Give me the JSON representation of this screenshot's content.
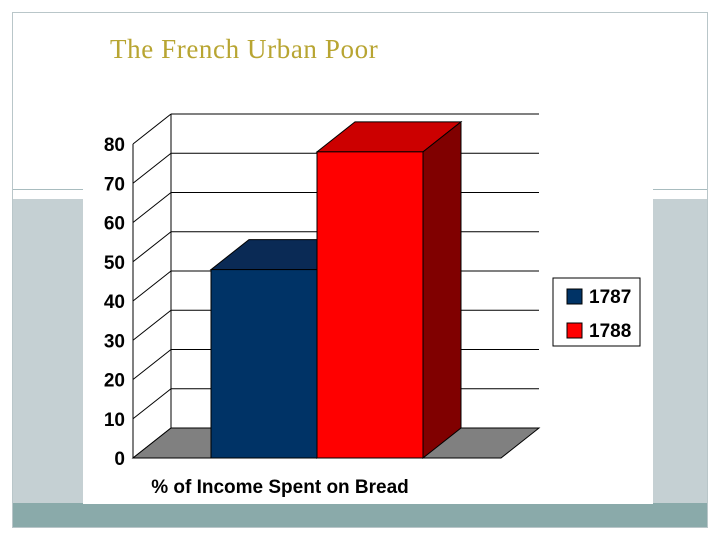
{
  "slide": {
    "title": "The French Urban Poor"
  },
  "chart_data": {
    "type": "bar",
    "title": "",
    "xlabel": "% of Income Spent on Bread",
    "ylabel": "",
    "categories": [
      "% of Income Spent on Bread"
    ],
    "series": [
      {
        "name": "1787",
        "values": [
          48
        ],
        "color": "#003366"
      },
      {
        "name": "1788",
        "values": [
          78
        ],
        "color": "#ff0000"
      }
    ],
    "ylim": [
      0,
      80
    ],
    "yticks": [
      "0",
      "10",
      "20",
      "30",
      "40",
      "50",
      "60",
      "70",
      "80"
    ],
    "grid": true,
    "legend_position": "right",
    "three_d": true,
    "colors": {
      "series_1787_top": "#0a2a55",
      "series_1788_top": "#cc0000",
      "series_1788_side": "#800000",
      "floor": "#808080"
    }
  }
}
